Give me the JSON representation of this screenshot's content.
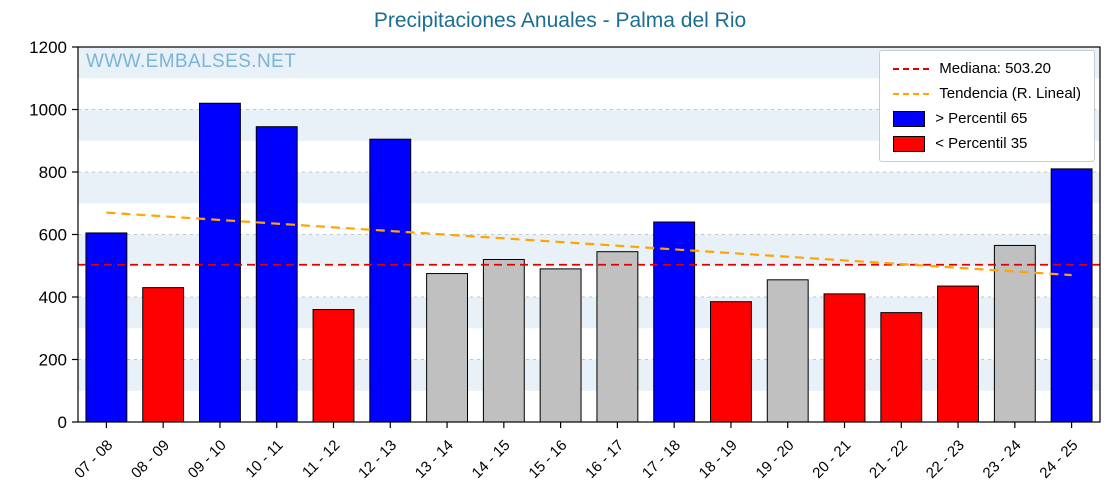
{
  "title": "Precipitaciones Anuales - Palma del Rio",
  "watermark": "WWW.EMBALSES.NET",
  "colors": {
    "blue": "#0000ff",
    "red": "#ff0000",
    "gray": "#c0c0c0",
    "median": "#e00000",
    "trend": "#ffa500",
    "stripe": "#e7f1f7",
    "grid": "#bcc8ce",
    "title": "#1b6d94",
    "watermark": "#7cb4d6"
  },
  "chart_data": {
    "type": "bar",
    "title": "Precipitaciones Anuales - Palma del Rio",
    "xlabel": "",
    "ylabel": "",
    "ylim": [
      0,
      1200
    ],
    "yticks": [
      0,
      200,
      400,
      600,
      800,
      1000,
      1200
    ],
    "grid": "dashed horizontal lines at yticks, striped band background",
    "legend_position": "upper right",
    "categories": [
      "07 - 08",
      "08 - 09",
      "09 - 10",
      "10 - 11",
      "11 - 12",
      "12 - 13",
      "13 - 14",
      "14 - 15",
      "15 - 16",
      "16 - 17",
      "17 - 18",
      "18 - 19",
      "19 - 20",
      "20 - 21",
      "21 - 22",
      "22 - 23",
      "23 - 24",
      "24 - 25"
    ],
    "values": [
      605,
      430,
      1020,
      945,
      360,
      905,
      475,
      520,
      490,
      545,
      640,
      385,
      455,
      410,
      350,
      435,
      565,
      810
    ],
    "bar_colors": [
      "blue",
      "red",
      "blue",
      "blue",
      "red",
      "blue",
      "gray",
      "gray",
      "gray",
      "gray",
      "blue",
      "red",
      "gray",
      "red",
      "red",
      "red",
      "gray",
      "blue"
    ],
    "median": 503.2,
    "trend": {
      "start": 670,
      "end": 470
    },
    "legend": {
      "median_label": "Mediana: 503.20",
      "trend_label": "Tendencia (R. Lineal)",
      "p65_label": "> Percentil 65",
      "p35_label": "< Percentil 35"
    }
  }
}
